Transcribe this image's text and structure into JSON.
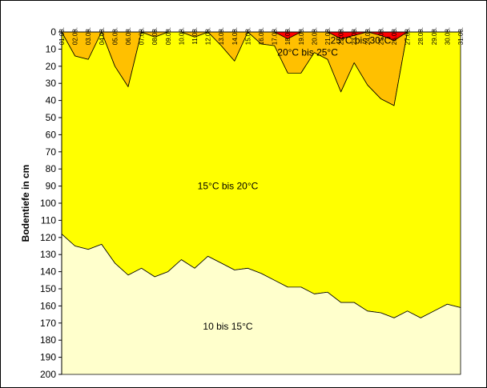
{
  "chart_data": {
    "type": "area",
    "ylabel": "Bodentiefe in cm",
    "ylim": [
      0,
      200
    ],
    "yticks": [
      0,
      10,
      20,
      30,
      40,
      50,
      60,
      70,
      80,
      90,
      100,
      110,
      120,
      130,
      140,
      150,
      160,
      170,
      180,
      190,
      200
    ],
    "y_inverted": true,
    "categories": [
      "01.08.",
      "02.08.",
      "03.08.",
      "04.08.",
      "05.08.",
      "06.08.",
      "07.08.",
      "08.08.",
      "09.08.",
      "10.08.",
      "11.08.",
      "12.08.",
      "13.08.",
      "14.08.",
      "15.08.",
      "16.08.",
      "17.08.",
      "18.08.",
      "19.08.",
      "20.08.",
      "21.08.",
      "22.08.",
      "23.08.",
      "24.08.",
      "25.08.",
      "26.08.",
      "27.08.",
      "28.08.",
      "29.08.",
      "30.08.",
      "31.08."
    ],
    "boundaries": {
      "t30": [
        0,
        0,
        0,
        0,
        0,
        0,
        0,
        0,
        0,
        0,
        0,
        0,
        0,
        0,
        0,
        0,
        0,
        0,
        0,
        0,
        0,
        0,
        0,
        0,
        0,
        0,
        0,
        0,
        0,
        0,
        0
      ],
      "t25": [
        0,
        0,
        0,
        0,
        0,
        0,
        0,
        0,
        0,
        0,
        0,
        0,
        0,
        0,
        0,
        0,
        0,
        4,
        0,
        0,
        0,
        4,
        2,
        0,
        2,
        5,
        0,
        0,
        0,
        0,
        0
      ],
      "t20": [
        0,
        14,
        16,
        0,
        20,
        32,
        0,
        3,
        0,
        0,
        3,
        0,
        8,
        17,
        0,
        7,
        8,
        24,
        24,
        12,
        16,
        35,
        18,
        31,
        39,
        43,
        0,
        0,
        0,
        0,
        0
      ],
      "t15": [
        118,
        125,
        127,
        124,
        135,
        142,
        138,
        143,
        140,
        133,
        138,
        131,
        135,
        139,
        138,
        141,
        145,
        149,
        149,
        153,
        152,
        158,
        158,
        163,
        164,
        167,
        163,
        167,
        163,
        159,
        161
      ],
      "bottom": [
        200,
        200,
        200,
        200,
        200,
        200,
        200,
        200,
        200,
        200,
        200,
        200,
        200,
        200,
        200,
        200,
        200,
        200,
        200,
        200,
        200,
        200,
        200,
        200,
        200,
        200,
        200,
        200,
        200,
        200,
        200
      ]
    },
    "bands": [
      {
        "label": "25°C bis 30°C",
        "color": "#ff0000",
        "upper": "t30",
        "lower": "t25",
        "label_pos": [
          22.5,
          5
        ]
      },
      {
        "label": "20°C bis 25°C",
        "color": "#ffc000",
        "upper": "t25",
        "lower": "t20",
        "label_pos": [
          18.5,
          12
        ]
      },
      {
        "label": "15°C bis 20°C",
        "color": "#ffff00",
        "upper": "t20",
        "lower": "t15",
        "label_pos": [
          12.5,
          90
        ]
      },
      {
        "label": "10 bis 15°C",
        "color": "#ffffcc",
        "upper": "t15",
        "lower": "bottom",
        "label_pos": [
          12.5,
          172
        ]
      }
    ],
    "grid": false,
    "legend": "none"
  }
}
